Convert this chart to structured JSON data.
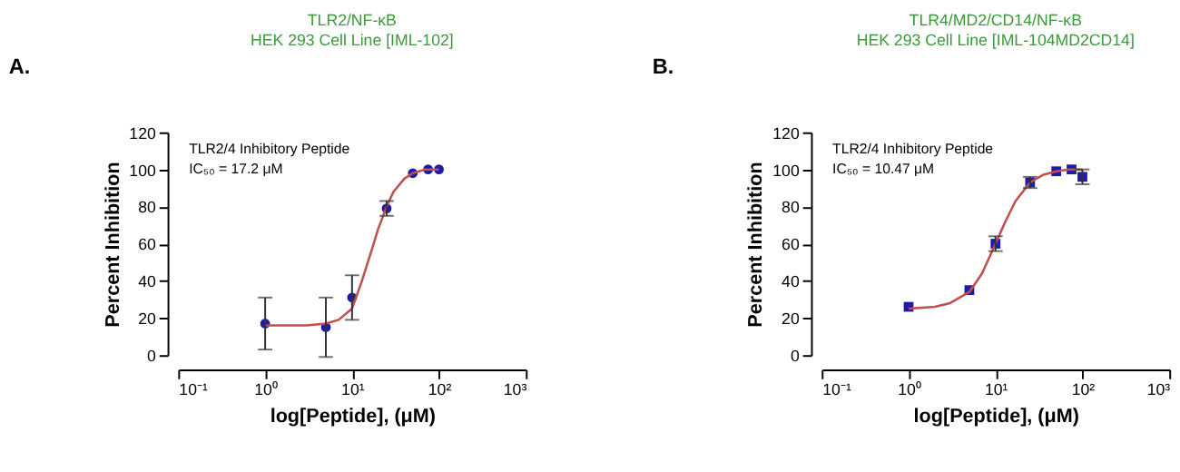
{
  "chart_data": [
    {
      "type": "scatter",
      "title": [
        "TLR2/NF-κB",
        "HEK 293 Cell Line [IML-102]"
      ],
      "xlabel": "log[Peptide], (μM)",
      "ylabel": "Percent Inhibition",
      "log": "x",
      "marker": "circle",
      "grid": false,
      "annotations": [
        "A.",
        "TLR2/4 Inhibitory Peptide",
        "IC₅₀ = 17.2 μM"
      ],
      "xlim": [
        0.1,
        1000
      ],
      "xticks": [
        {
          "value": 0.1,
          "label": "10⁻¹"
        },
        {
          "value": 1,
          "label": "10⁰"
        },
        {
          "value": 10,
          "label": "10¹"
        },
        {
          "value": 100,
          "label": "10²"
        },
        {
          "value": 1000,
          "label": "10³"
        }
      ],
      "ylim": [
        0,
        120
      ],
      "yticks": [
        0,
        20,
        40,
        60,
        80,
        100,
        120
      ],
      "series": [
        {
          "color": "#1c1ca8",
          "x": [
            1,
            5,
            10,
            25,
            50,
            75,
            100
          ],
          "values": [
            17,
            15,
            31,
            79,
            98,
            100,
            100
          ],
          "errors": [
            14,
            16,
            12,
            4,
            null,
            null,
            null
          ]
        },
        {
          "type": "line",
          "color": "#c0504d",
          "x": [
            1,
            3,
            5,
            7,
            10,
            13,
            17.2,
            20,
            25,
            30,
            40,
            50,
            70,
            100
          ],
          "values": [
            16,
            16,
            17,
            19,
            25,
            40,
            58,
            68,
            80,
            88,
            95,
            98,
            100,
            100
          ],
          "marker": "none"
        }
      ]
    },
    {
      "type": "scatter",
      "title": [
        "TLR4/MD2/CD14/NF-κB",
        "HEK 293 Cell Line [IML-104MD2CD14]"
      ],
      "xlabel": "log[Peptide], (μM)",
      "ylabel": "Percent Inhibition",
      "log": "x",
      "marker": "square",
      "grid": false,
      "annotations": [
        "B.",
        "TLR2/4 Inhibitory Peptide",
        "IC₅₀ = 10.47 μM"
      ],
      "xlim": [
        0.1,
        1000
      ],
      "xticks": [
        {
          "value": 0.1,
          "label": "10⁻¹"
        },
        {
          "value": 1,
          "label": "10⁰"
        },
        {
          "value": 10,
          "label": "10¹"
        },
        {
          "value": 100,
          "label": "10²"
        },
        {
          "value": 1000,
          "label": "10³"
        }
      ],
      "ylim": [
        0,
        120
      ],
      "yticks": [
        0,
        20,
        40,
        60,
        80,
        100,
        120
      ],
      "series": [
        {
          "color": "#1c1ca8",
          "x": [
            1,
            5,
            10,
            25,
            50,
            75,
            100
          ],
          "values": [
            26,
            35,
            60,
            93,
            99,
            100,
            96
          ],
          "errors": [
            null,
            null,
            4,
            3,
            null,
            null,
            4
          ]
        },
        {
          "type": "line",
          "color": "#c0504d",
          "x": [
            1,
            2,
            3,
            5,
            7,
            10,
            13,
            17,
            25,
            35,
            50,
            70,
            100
          ],
          "values": [
            25,
            26,
            28,
            34,
            44,
            60,
            72,
            83,
            93,
            97,
            99,
            100,
            100
          ],
          "marker": "none"
        }
      ]
    }
  ]
}
